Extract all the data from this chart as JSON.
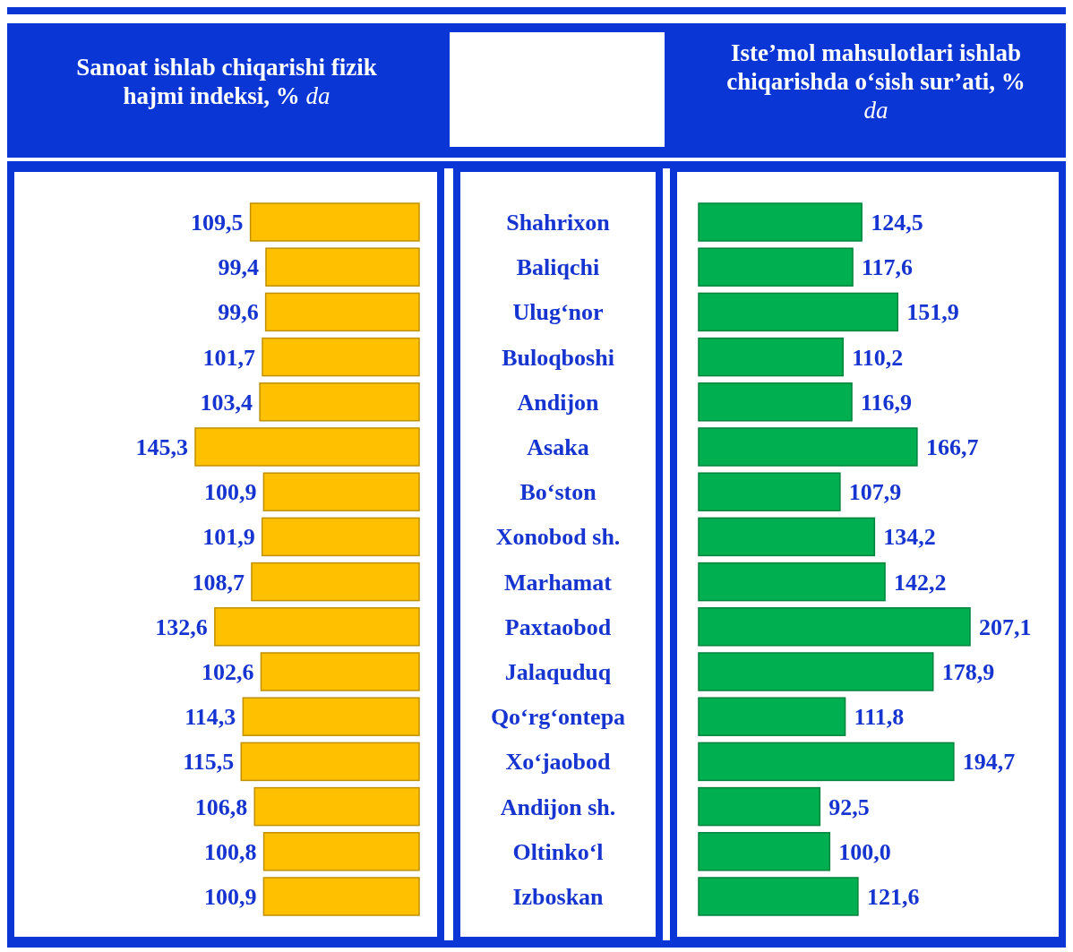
{
  "chart_data": [
    {
      "type": "bar",
      "orientation": "horizontal",
      "title": "Sanoat ishlab chiqarishi fizik hajmi indeksi, % da",
      "categories": [
        "Shahrixon",
        "Baliqchi",
        "Ulug‘nor",
        "Buloqboshi",
        "Andijon",
        "Asaka",
        "Bo‘ston",
        "Xonobod sh.",
        "Marhamat",
        "Paxtaobod",
        "Jalaquduq",
        "Qo‘rg‘ontepa",
        "Xo‘jaobod",
        "Andijon sh.",
        "Oltinko‘l",
        "Izboskan"
      ],
      "values": [
        109.5,
        99.4,
        99.6,
        101.7,
        103.4,
        145.3,
        100.9,
        101.9,
        108.7,
        132.6,
        102.6,
        114.3,
        115.5,
        106.8,
        100.8,
        100.9
      ],
      "value_labels": [
        "109,5",
        "99,4",
        "99,6",
        "101,7",
        "103,4",
        "145,3",
        "100,9",
        "101,9",
        "108,7",
        "132,6",
        "102,6",
        "114,3",
        "115,5",
        "106,8",
        "100,8",
        "100,9"
      ],
      "color": "#ffc000"
    },
    {
      "type": "bar",
      "orientation": "horizontal",
      "title": "Iste’mol mahsulotlari ishlab chiqarishda o‘sish sur’ati, % da",
      "categories": [
        null,
        null,
        null,
        null,
        null,
        null,
        null,
        null,
        null,
        null,
        null,
        null,
        null,
        null,
        null,
        null
      ],
      "values": [
        124.5,
        117.6,
        151.9,
        110.2,
        116.9,
        166.7,
        107.9,
        134.2,
        142.2,
        207.1,
        178.9,
        111.8,
        194.7,
        92.5,
        100.0,
        121.6
      ],
      "value_labels": [
        "124,5",
        "117,6",
        "151,9",
        "110,2",
        "116,9",
        "166,7",
        "107,9",
        "134,2",
        "142,2",
        "207,1",
        "178,9",
        "111,8",
        "194,7",
        "92,5",
        "100,0",
        "121,6"
      ],
      "color": "#00b050"
    }
  ]
}
